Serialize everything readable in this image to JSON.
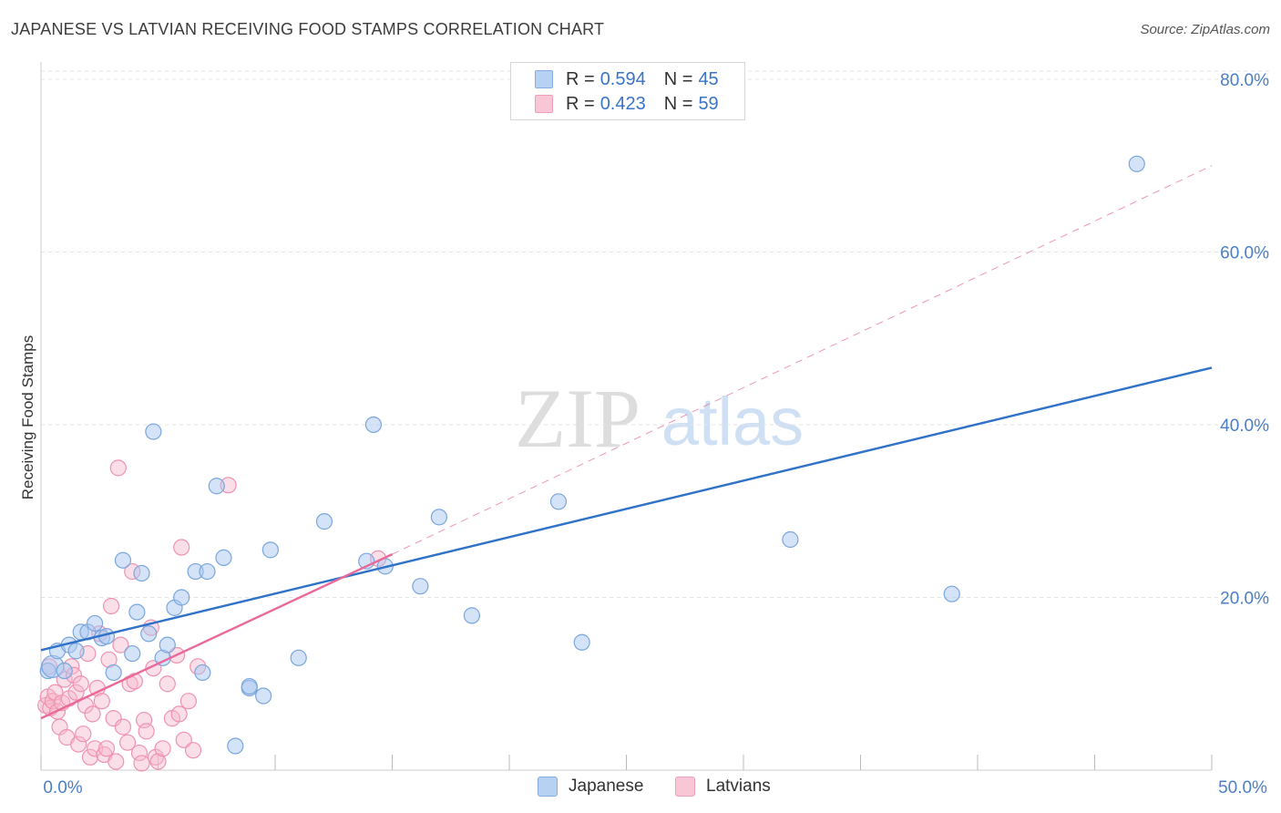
{
  "title": "JAPANESE VS LATVIAN RECEIVING FOOD STAMPS CORRELATION CHART",
  "source": "Source: ZipAtlas.com",
  "watermark": {
    "zip": "ZIP",
    "atlas": "atlas"
  },
  "legend": {
    "japanese": {
      "r_label": "R =",
      "r_value": "0.594",
      "n_label": "N =",
      "n_value": "45"
    },
    "latvians": {
      "r_label": "R =",
      "r_value": "0.423",
      "n_label": "N =",
      "n_value": "59"
    }
  },
  "colors": {
    "japanese_fill": "#a9c8f0",
    "japanese_stroke": "#7aa6dc",
    "japanese_line": "#2f72c8",
    "latvians_fill": "#f6b9cc",
    "latvians_stroke": "#ee93b0",
    "latvians_line": "#e8699a",
    "grid": "#e4e4e4",
    "tick_label": "#4a7fc8"
  },
  "chart_data": {
    "type": "scatter",
    "title": "JAPANESE VS LATVIAN RECEIVING FOOD STAMPS CORRELATION CHART",
    "xlabel": "",
    "ylabel": "Receiving Food Stamps",
    "xlim": [
      0,
      50
    ],
    "ylim": [
      0,
      82
    ],
    "x_tick_labels": [
      "0.0%",
      "50.0%"
    ],
    "y_ticks": [
      20,
      40,
      60,
      80
    ],
    "y_tick_labels": [
      "20.0%",
      "40.0%",
      "60.0%",
      "80.0%"
    ],
    "legend_entries": [
      "Japanese",
      "Latvians"
    ],
    "series": [
      {
        "name": "Japanese",
        "points": [
          [
            0.3,
            11.5
          ],
          [
            0.5,
            12.0
          ],
          [
            0.7,
            13.8
          ],
          [
            1.0,
            11.5
          ],
          [
            1.2,
            14.5
          ],
          [
            1.5,
            13.8
          ],
          [
            1.7,
            16.0
          ],
          [
            2.0,
            16.0
          ],
          [
            2.3,
            17.0
          ],
          [
            2.6,
            15.3
          ],
          [
            2.8,
            15.5
          ],
          [
            3.1,
            11.3
          ],
          [
            3.5,
            24.3
          ],
          [
            3.9,
            13.5
          ],
          [
            4.1,
            18.3
          ],
          [
            4.3,
            22.8
          ],
          [
            4.6,
            15.8
          ],
          [
            4.8,
            39.2
          ],
          [
            5.2,
            13.0
          ],
          [
            5.4,
            14.5
          ],
          [
            5.7,
            18.8
          ],
          [
            6.0,
            20.0
          ],
          [
            6.6,
            23.0
          ],
          [
            7.1,
            23.0
          ],
          [
            6.9,
            11.3
          ],
          [
            7.5,
            32.9
          ],
          [
            7.8,
            24.6
          ],
          [
            8.3,
            2.8
          ],
          [
            8.9,
            9.5
          ],
          [
            8.9,
            9.7
          ],
          [
            9.5,
            8.6
          ],
          [
            9.8,
            25.5
          ],
          [
            11.0,
            13.0
          ],
          [
            12.1,
            28.8
          ],
          [
            13.9,
            24.2
          ],
          [
            14.2,
            40.0
          ],
          [
            14.7,
            23.6
          ],
          [
            16.2,
            21.3
          ],
          [
            17.0,
            29.3
          ],
          [
            18.4,
            17.9
          ],
          [
            22.1,
            31.1
          ],
          [
            23.1,
            14.8
          ],
          [
            32.0,
            26.7
          ],
          [
            38.9,
            20.4
          ],
          [
            46.8,
            70.2
          ]
        ]
      },
      {
        "name": "Latvians",
        "points": [
          [
            0.2,
            7.5
          ],
          [
            0.3,
            8.5
          ],
          [
            0.4,
            7.2
          ],
          [
            0.5,
            8.0
          ],
          [
            0.6,
            9.0
          ],
          [
            0.7,
            6.8
          ],
          [
            0.8,
            5.0
          ],
          [
            0.9,
            7.8
          ],
          [
            1.0,
            10.5
          ],
          [
            1.1,
            3.8
          ],
          [
            1.2,
            8.3
          ],
          [
            1.3,
            12.0
          ],
          [
            1.4,
            11.0
          ],
          [
            1.5,
            9.0
          ],
          [
            1.6,
            3.0
          ],
          [
            1.7,
            10.0
          ],
          [
            1.8,
            4.2
          ],
          [
            1.9,
            7.5
          ],
          [
            2.0,
            13.5
          ],
          [
            2.1,
            1.5
          ],
          [
            2.2,
            6.5
          ],
          [
            2.3,
            2.5
          ],
          [
            2.4,
            9.5
          ],
          [
            2.5,
            15.8
          ],
          [
            2.6,
            8.0
          ],
          [
            2.7,
            1.8
          ],
          [
            2.8,
            2.5
          ],
          [
            2.9,
            12.8
          ],
          [
            3.0,
            19.0
          ],
          [
            3.1,
            6.0
          ],
          [
            3.2,
            1.0
          ],
          [
            3.3,
            35.0
          ],
          [
            3.4,
            14.5
          ],
          [
            3.5,
            5.0
          ],
          [
            3.7,
            3.2
          ],
          [
            3.8,
            10.0
          ],
          [
            3.9,
            23.0
          ],
          [
            4.0,
            10.3
          ],
          [
            4.2,
            2.0
          ],
          [
            4.3,
            0.8
          ],
          [
            4.4,
            5.8
          ],
          [
            4.5,
            4.5
          ],
          [
            4.7,
            16.5
          ],
          [
            4.8,
            11.8
          ],
          [
            4.9,
            1.5
          ],
          [
            5.0,
            1.0
          ],
          [
            5.2,
            2.5
          ],
          [
            5.4,
            10.0
          ],
          [
            5.6,
            6.0
          ],
          [
            5.8,
            13.3
          ],
          [
            5.9,
            6.5
          ],
          [
            6.0,
            25.8
          ],
          [
            6.1,
            3.5
          ],
          [
            6.3,
            8.0
          ],
          [
            6.5,
            2.3
          ],
          [
            6.7,
            12.0
          ],
          [
            8.0,
            33.0
          ],
          [
            14.4,
            24.5
          ],
          [
            0.35,
            12.0
          ]
        ]
      }
    ],
    "trend_lines": [
      {
        "name": "Japanese",
        "x": [
          0,
          50
        ],
        "y": [
          13.9,
          46.6
        ],
        "style": "solid"
      },
      {
        "name": "Latvians",
        "x": [
          0,
          15
        ],
        "y": [
          6.0,
          25.0
        ],
        "style": "solid"
      },
      {
        "name": "Latvians",
        "x": [
          15,
          50
        ],
        "y": [
          25.0,
          70.0
        ],
        "style": "dashed"
      }
    ]
  }
}
